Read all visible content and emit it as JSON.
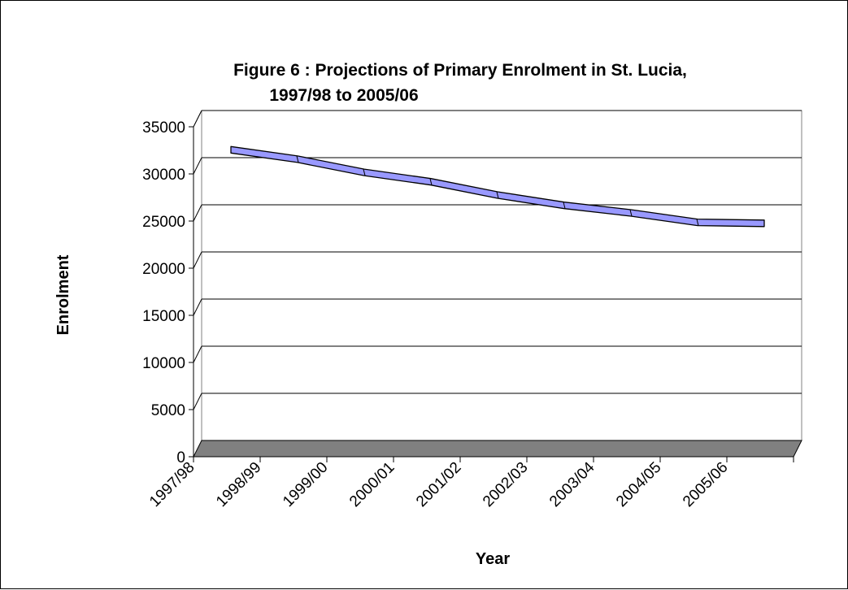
{
  "chart_data": {
    "type": "line",
    "title": "Figure 6 : Projections of Primary Enrolment in St. Lucia,",
    "subtitle": "1997/98 to 2005/06",
    "xlabel": "Year",
    "ylabel": "Enrolment",
    "categories": [
      "1997/98",
      "1998/99",
      "1999/00",
      "2000/01",
      "2001/02",
      "2002/03",
      "2003/04",
      "2004/05",
      "2005/06"
    ],
    "series": [
      {
        "values": [
          31700,
          30700,
          29300,
          28300,
          26900,
          25800,
          25000,
          24000,
          23900
        ]
      }
    ],
    "ylim": [
      0,
      35000
    ],
    "yticks": [
      "0",
      "5000",
      "10000",
      "15000",
      "20000",
      "25000",
      "30000",
      "35000"
    ],
    "grid": true,
    "legend": "none",
    "style": "3d",
    "colors": {
      "line_face": "#9999ff",
      "line_edge": "#000000",
      "floor": "#808080",
      "gridline": "#000000"
    }
  }
}
